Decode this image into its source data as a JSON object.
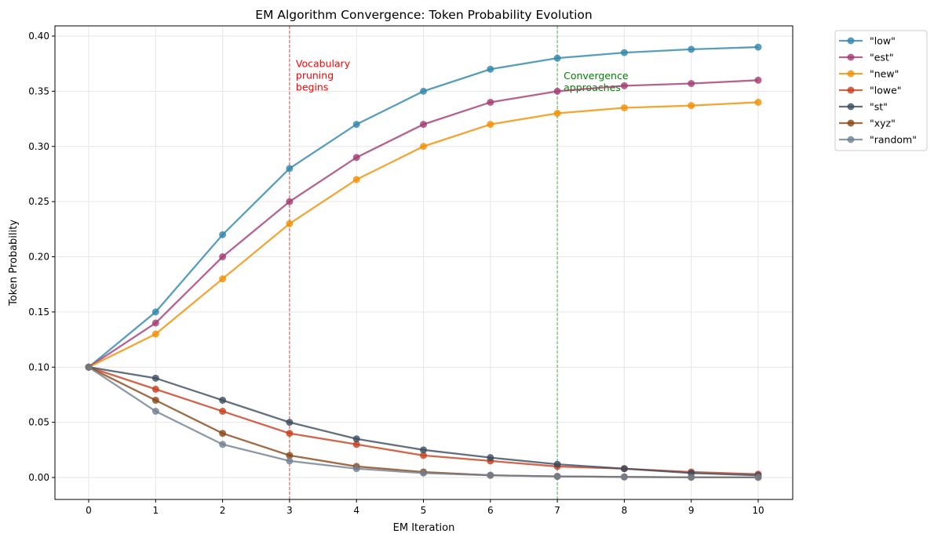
{
  "chart_data": {
    "type": "line",
    "title": "EM Algorithm Convergence: Token Probability Evolution",
    "xlabel": "EM Iteration",
    "ylabel": "Token Probability",
    "xlim": [
      -0.5,
      10.5
    ],
    "ylim": [
      -0.02,
      0.41
    ],
    "grid": true,
    "legend_placement": "outside-right",
    "x": [
      0,
      1,
      2,
      3,
      4,
      5,
      6,
      7,
      8,
      9,
      10
    ],
    "xticks": [
      "0",
      "1",
      "2",
      "3",
      "4",
      "5",
      "6",
      "7",
      "8",
      "9",
      "10"
    ],
    "yticks": [
      "0.00",
      "0.05",
      "0.10",
      "0.15",
      "0.20",
      "0.25",
      "0.30",
      "0.35",
      "0.40"
    ],
    "series": [
      {
        "name": "\"low\"",
        "color": "#2E86AB",
        "values": [
          0.1,
          0.15,
          0.22,
          0.28,
          0.32,
          0.35,
          0.37,
          0.38,
          0.385,
          0.388,
          0.39
        ]
      },
      {
        "name": "\"est\"",
        "color": "#A23B72",
        "values": [
          0.1,
          0.14,
          0.2,
          0.25,
          0.29,
          0.32,
          0.34,
          0.35,
          0.355,
          0.357,
          0.36
        ]
      },
      {
        "name": "\"new\"",
        "color": "#F18F01",
        "values": [
          0.1,
          0.13,
          0.18,
          0.23,
          0.27,
          0.3,
          0.32,
          0.33,
          0.335,
          0.337,
          0.34
        ]
      },
      {
        "name": "\"lowe\"",
        "color": "#C73E1D",
        "values": [
          0.1,
          0.08,
          0.06,
          0.04,
          0.03,
          0.02,
          0.015,
          0.01,
          0.008,
          0.005,
          0.003
        ]
      },
      {
        "name": "\"st\"",
        "color": "#3B4B5F",
        "values": [
          0.1,
          0.09,
          0.07,
          0.05,
          0.035,
          0.025,
          0.018,
          0.012,
          0.008,
          0.004,
          0.002
        ]
      },
      {
        "name": "\"xyz\"",
        "color": "#8B4513",
        "values": [
          0.1,
          0.07,
          0.04,
          0.02,
          0.01,
          0.005,
          0.002,
          0.001,
          0.0005,
          0.0002,
          0.0001
        ]
      },
      {
        "name": "\"random\"",
        "color": "#708090",
        "values": [
          0.1,
          0.06,
          0.03,
          0.015,
          0.008,
          0.004,
          0.002,
          0.001,
          0.0005,
          0.0002,
          0.0001
        ]
      }
    ],
    "annotations": [
      {
        "x": 3,
        "color": "#d62728",
        "text": [
          "Vocabulary",
          "pruning",
          "begins"
        ],
        "text_color": "#ff0000",
        "text_y": 0.372
      },
      {
        "x": 7,
        "color": "#2ca02c",
        "text": [
          "Convergence",
          "approaches"
        ],
        "text_color": "#008000",
        "text_y": 0.361
      }
    ]
  }
}
